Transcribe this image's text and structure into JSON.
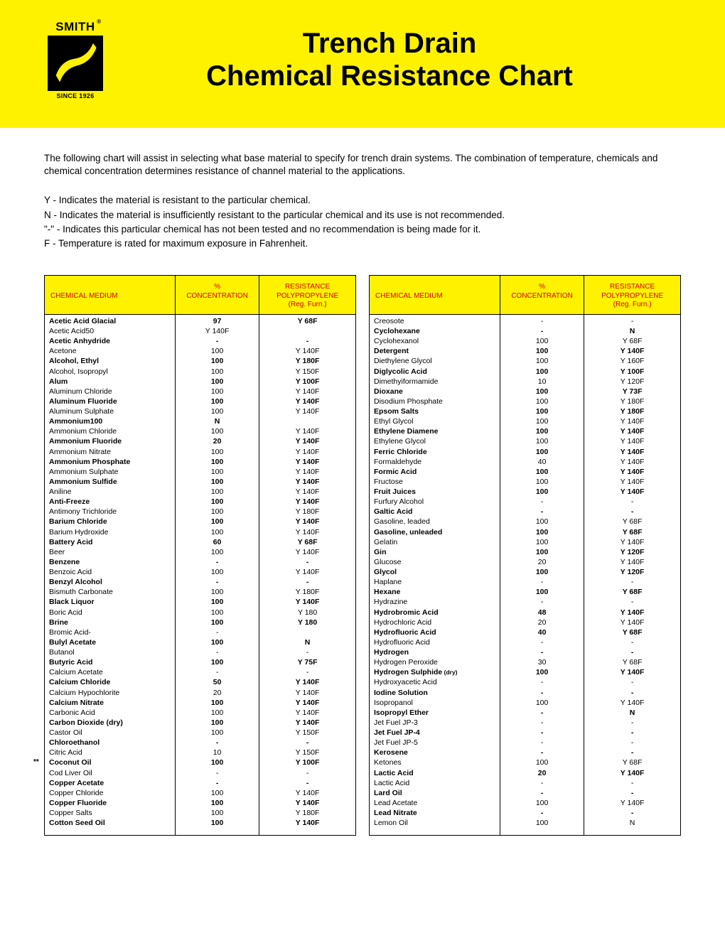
{
  "colors": {
    "banner_bg": "#fff200",
    "header_text": "#d40000"
  },
  "logo": {
    "brand": "SMITH",
    "registered": "®",
    "since": "SINCE 1926"
  },
  "title_line1": "Trench Drain",
  "title_line2": "Chemical Resistance Chart",
  "intro": "The following chart will assist in selecting what base material to specify for trench drain systems. The combination of temperature, chemicals and chemical concentration determines resistance of channel material to the applications.",
  "legend": [
    "Y - Indicates the material is resistant to the particular chemical.",
    "N - Indicates the material is insufficiently resistant to the particular chemical and its use is not recommended.",
    "\"-\" - Indicates this particular chemical has not been tested and no recommendation is being made for it.",
    "F - Temperature is rated for maximum exposure in Fahrenheit."
  ],
  "columns": {
    "name": "CHEMICAL MEDIUM",
    "conc_top": "%",
    "conc": "CONCENTRATION",
    "res_top": "RESISTANCE",
    "res_mid": "POLYPROPYLENE",
    "res_bot": "(Reg. Furn.)"
  },
  "left": [
    {
      "n": "Acetic Acid Glacial",
      "c": "97",
      "r": "Y 68F",
      "b": true
    },
    {
      "n": "Acetic Acid50",
      "c": "Y 140F",
      "r": "",
      "b": false
    },
    {
      "n": "Acetic Anhydride",
      "c": "-",
      "r": "-",
      "b": true
    },
    {
      "n": "Acetone",
      "c": "100",
      "r": "Y 140F",
      "b": false
    },
    {
      "n": "Alcohol, Ethyl",
      "c": "100",
      "r": "Y 180F",
      "b": true
    },
    {
      "n": "Alcohol, Isopropyl",
      "c": "100",
      "r": "Y 150F",
      "b": false
    },
    {
      "n": "Alum",
      "c": "100",
      "r": "Y 100F",
      "b": true
    },
    {
      "n": "Aluminum Chloride",
      "c": "100",
      "r": "Y 140F",
      "b": false
    },
    {
      "n": "Aluminum Fluoride",
      "c": "100",
      "r": "Y 140F",
      "b": true
    },
    {
      "n": "Aluminum Sulphate",
      "c": "100",
      "r": "Y 140F",
      "b": false
    },
    {
      "n": "Ammonium100",
      "c": "N",
      "r": "",
      "b": true
    },
    {
      "n": "Ammonium Chloride",
      "c": "100",
      "r": "Y 140F",
      "b": false
    },
    {
      "n": "Ammonium Fluoride",
      "c": "20",
      "r": "Y 140F",
      "b": true
    },
    {
      "n": "Ammonium Nitrate",
      "c": "100",
      "r": "Y 140F",
      "b": false
    },
    {
      "n": "Ammonium Phosphate",
      "c": "100",
      "r": "Y 140F",
      "b": true
    },
    {
      "n": "Ammonium Sulphate",
      "c": "100",
      "r": "Y 140F",
      "b": false
    },
    {
      "n": "Ammonium Sulfide",
      "c": "100",
      "r": "Y 140F",
      "b": true
    },
    {
      "n": "Aniline",
      "c": "100",
      "r": "Y 140F",
      "b": false
    },
    {
      "n": "Anti-Freeze",
      "c": "100",
      "r": "Y 140F",
      "b": true
    },
    {
      "n": "Antimony Trichloride",
      "c": "100",
      "r": "Y 180F",
      "b": false
    },
    {
      "n": "Barium Chloride",
      "c": "100",
      "r": "Y 140F",
      "b": true
    },
    {
      "n": "Barium Hydroxide",
      "c": "100",
      "r": "Y 140F",
      "b": false
    },
    {
      "n": "Battery Acid",
      "c": "60",
      "r": "Y 68F",
      "b": true
    },
    {
      "n": "Beer",
      "c": "100",
      "r": "Y 140F",
      "b": false
    },
    {
      "n": "Benzene",
      "c": "-",
      "r": "-",
      "b": true
    },
    {
      "n": "Benzoic Acid",
      "c": "100",
      "r": "Y 140F",
      "b": false
    },
    {
      "n": "Benzyl Alcohol",
      "c": "-",
      "r": "-",
      "b": true
    },
    {
      "n": "Bismuth Carbonate",
      "c": "100",
      "r": "Y 180F",
      "b": false
    },
    {
      "n": "Black Liquor",
      "c": "100",
      "r": "Y 140F",
      "b": true
    },
    {
      "n": "Boric Acid",
      "c": "100",
      "r": "Y 180",
      "b": false
    },
    {
      "n": "Brine",
      "c": "100",
      "r": "Y 180",
      "b": true
    },
    {
      "n": "Bromic Acid-",
      "c": "-",
      "r": "",
      "b": false
    },
    {
      "n": "Bulyl Acetate",
      "c": "100",
      "r": "N",
      "b": true
    },
    {
      "n": "Butanol",
      "c": "-",
      "r": "-",
      "b": false
    },
    {
      "n": "Butyric Acid",
      "c": "100",
      "r": "Y 75F",
      "b": true
    },
    {
      "n": "Calcium Acetate",
      "c": "-",
      "r": "-",
      "b": false
    },
    {
      "n": "Calcium Chloride",
      "c": "50",
      "r": "Y 140F",
      "b": true
    },
    {
      "n": "Calcium Hypochlorite",
      "c": "20",
      "r": "Y 140F",
      "b": false
    },
    {
      "n": "Calcium Nitrate",
      "c": "100",
      "r": "Y 140F",
      "b": true
    },
    {
      "n": "Carbonic Acid",
      "c": "100",
      "r": "Y 140F",
      "b": false
    },
    {
      "n": "Carbon Dioxide (dry)",
      "c": "100",
      "r": "Y 140F",
      "b": true
    },
    {
      "n": "Castor Oil",
      "c": "100",
      "r": "Y 150F",
      "b": false
    },
    {
      "n": "Chloroethanol",
      "c": "-",
      "r": "-",
      "b": true
    },
    {
      "n": "Citric Acid",
      "c": "10",
      "r": "Y 150F",
      "b": false
    },
    {
      "n": "Coconut Oil",
      "c": "100",
      "r": "Y 100F",
      "b": true,
      "star": true
    },
    {
      "n": "Cod Liver Oil",
      "c": "-",
      "r": "-",
      "b": false
    },
    {
      "n": "Copper Acetate",
      "c": "-",
      "r": "-",
      "b": true
    },
    {
      "n": "Copper Chloride",
      "c": "100",
      "r": "Y 140F",
      "b": false
    },
    {
      "n": "Copper Fluoride",
      "c": "100",
      "r": "Y 140F",
      "b": true
    },
    {
      "n": "Copper Salts",
      "c": "100",
      "r": "Y 180F",
      "b": false
    },
    {
      "n": "Cotton Seed Oil",
      "c": "100",
      "r": "Y 140F",
      "b": true
    }
  ],
  "right": [
    {
      "n": "Creosote",
      "c": "-",
      "r": "-",
      "b": false
    },
    {
      "n": "Cyclohexane",
      "c": "-",
      "r": "N",
      "b": true
    },
    {
      "n": "Cyclohexanol",
      "c": "100",
      "r": "Y 68F",
      "b": false
    },
    {
      "n": "Detergent",
      "c": "100",
      "r": "Y 140F",
      "b": true
    },
    {
      "n": "Diethylene Glycol",
      "c": "100",
      "r": "Y 160F",
      "b": false
    },
    {
      "n": "Diglycolic Acid",
      "c": "100",
      "r": "Y 100F",
      "b": true
    },
    {
      "n": "Dimethyiformamide",
      "c": "10",
      "r": "Y 120F",
      "b": false
    },
    {
      "n": "Dioxane",
      "c": "100",
      "r": "Y 73F",
      "b": true
    },
    {
      "n": "Disodium Phosphate",
      "c": "100",
      "r": "Y 180F",
      "b": false
    },
    {
      "n": "Epsom Salts",
      "c": "100",
      "r": "Y 180F",
      "b": true
    },
    {
      "n": "Ethyl Glycol",
      "c": "100",
      "r": "Y 140F",
      "b": false
    },
    {
      "n": "Ethylene Diamene",
      "c": "100",
      "r": "Y 140F",
      "b": true
    },
    {
      "n": "Ethylene Glycol",
      "c": "100",
      "r": "Y 140F",
      "b": false
    },
    {
      "n": "Ferric Chloride",
      "c": "100",
      "r": "Y 140F",
      "b": true
    },
    {
      "n": "Formaldehyde",
      "c": "40",
      "r": "Y 140F",
      "b": false
    },
    {
      "n": "Formic Acid",
      "c": "100",
      "r": "Y 140F",
      "b": true
    },
    {
      "n": "Fructose",
      "c": "100",
      "r": "Y 140F",
      "b": false
    },
    {
      "n": "Fruit Juices",
      "c": "100",
      "r": "Y 140F",
      "b": true
    },
    {
      "n": "Furfury Alcohol",
      "c": "-",
      "r": "-",
      "b": false
    },
    {
      "n": "Galtic Acid",
      "c": "-",
      "r": "-",
      "b": true
    },
    {
      "n": "Gasoline, leaded",
      "c": "100",
      "r": "Y 68F",
      "b": false
    },
    {
      "n": "Gasoline, unleaded",
      "c": "100",
      "r": "Y 68F",
      "b": true
    },
    {
      "n": "Gelatin",
      "c": "100",
      "r": "Y 140F",
      "b": false
    },
    {
      "n": "Gin",
      "c": "100",
      "r": "Y 120F",
      "b": true
    },
    {
      "n": "Glucose",
      "c": "20",
      "r": "Y 140F",
      "b": false
    },
    {
      "n": "Glycol",
      "c": "100",
      "r": "Y 120F",
      "b": true
    },
    {
      "n": "Haplane",
      "c": "-",
      "r": "-",
      "b": false
    },
    {
      "n": "Hexane",
      "c": "100",
      "r": "Y 68F",
      "b": true
    },
    {
      "n": "Hydrazine",
      "c": "-",
      "r": "-",
      "b": false
    },
    {
      "n": "Hydrobromic Acid",
      "c": "48",
      "r": "Y 140F",
      "b": true
    },
    {
      "n": "Hydrochloric Acid",
      "c": "20",
      "r": "Y 140F",
      "b": false
    },
    {
      "n": "Hydrofluoric Acid",
      "c": "40",
      "r": "Y 68F",
      "b": true
    },
    {
      "n": "Hydrofluoric Acid",
      "c": "-",
      "r": "-",
      "b": false
    },
    {
      "n": "Hydrogen",
      "c": "-",
      "r": "-",
      "b": true
    },
    {
      "n": "Hydrogen Peroxide",
      "c": "30",
      "r": "Y 68F",
      "b": false
    },
    {
      "n": "Hydrogen Sulphide",
      "c": "100",
      "r": "Y 140F",
      "b": true,
      "dry": true
    },
    {
      "n": "Hydroxyacetic Acid",
      "c": "-",
      "r": "-",
      "b": false
    },
    {
      "n": "Iodine Solution",
      "c": "-",
      "r": "-",
      "b": true
    },
    {
      "n": "Isopropanol",
      "c": "100",
      "r": "Y 140F",
      "b": false
    },
    {
      "n": "Isopropyl Ether",
      "c": "-",
      "r": "N",
      "b": true
    },
    {
      "n": "Jet Fuel JP-3",
      "c": "-",
      "r": "-",
      "b": false
    },
    {
      "n": "Jet Fuel JP-4",
      "c": "-",
      "r": "-",
      "b": true
    },
    {
      "n": "Jet Fuel JP-5",
      "c": "-",
      "r": "-",
      "b": false
    },
    {
      "n": "Kerosene",
      "c": "-",
      "r": "-",
      "b": true
    },
    {
      "n": "Ketones",
      "c": "100",
      "r": "Y 68F",
      "b": false
    },
    {
      "n": "Lactic Acid",
      "c": "20",
      "r": "Y 140F",
      "b": true
    },
    {
      "n": "Lactic Acid",
      "c": "-",
      "r": "-",
      "b": false
    },
    {
      "n": "Lard Oil",
      "c": "-",
      "r": "-",
      "b": true
    },
    {
      "n": "Lead Acetate",
      "c": "100",
      "r": "Y 140F",
      "b": false
    },
    {
      "n": "Lead Nitrate",
      "c": "-",
      "r": "-",
      "b": true
    },
    {
      "n": "Lemon Oil",
      "c": "100",
      "r": "N",
      "b": false
    }
  ]
}
